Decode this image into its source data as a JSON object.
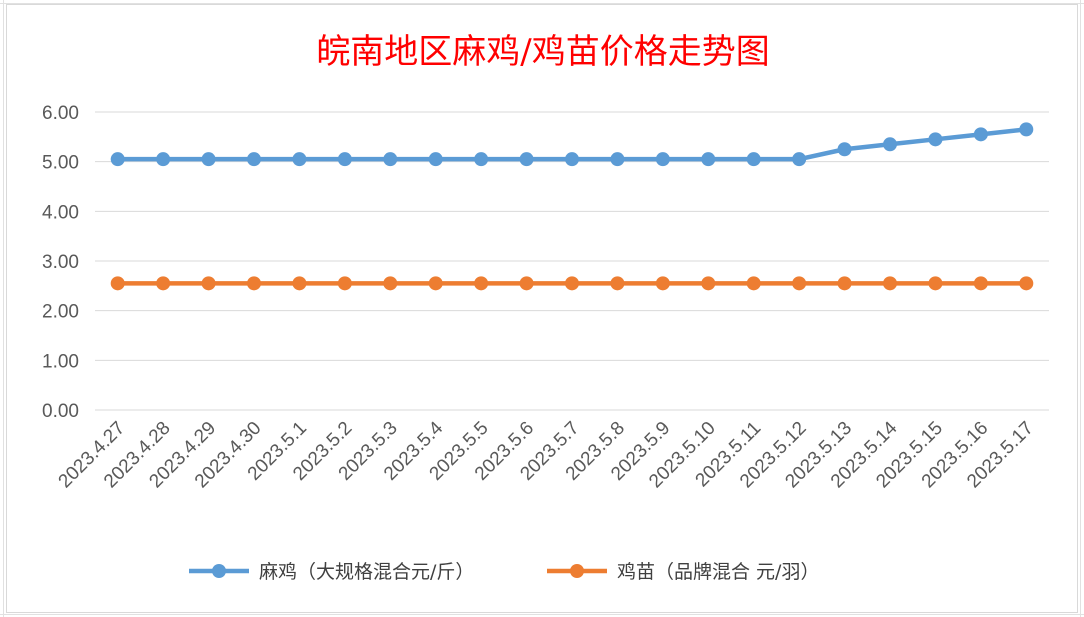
{
  "chart_data": {
    "type": "line",
    "title": "皖南地区麻鸡/鸡苗价格走势图",
    "xlabel": "",
    "ylabel": "",
    "categories": [
      "2023.4.27",
      "2023.4.28",
      "2023.4.29",
      "2023.4.30",
      "2023.5.1",
      "2023.5.2",
      "2023.5.3",
      "2023.5.4",
      "2023.5.5",
      "2023.5.6",
      "2023.5.7",
      "2023.5.8",
      "2023.5.9",
      "2023.5.10",
      "2023.5.11",
      "2023.5.12",
      "2023.5.13",
      "2023.5.14",
      "2023.5.15",
      "2023.5.16",
      "2023.5.17"
    ],
    "y_ticks": [
      "0.00",
      "1.00",
      "2.00",
      "3.00",
      "4.00",
      "5.00",
      "6.00"
    ],
    "ylim": [
      0,
      6
    ],
    "grid": true,
    "legend_position": "bottom",
    "series": [
      {
        "name": "麻鸡（大规格混合元/斤）",
        "color": "#5b9bd5",
        "values": [
          5.05,
          5.05,
          5.05,
          5.05,
          5.05,
          5.05,
          5.05,
          5.05,
          5.05,
          5.05,
          5.05,
          5.05,
          5.05,
          5.05,
          5.05,
          5.05,
          5.25,
          5.35,
          5.45,
          5.55,
          5.65
        ]
      },
      {
        "name": "鸡苗（品牌混合 元/羽）",
        "color": "#ed7d31",
        "values": [
          2.55,
          2.55,
          2.55,
          2.55,
          2.55,
          2.55,
          2.55,
          2.55,
          2.55,
          2.55,
          2.55,
          2.55,
          2.55,
          2.55,
          2.55,
          2.55,
          2.55,
          2.55,
          2.55,
          2.55,
          2.55
        ]
      }
    ]
  }
}
